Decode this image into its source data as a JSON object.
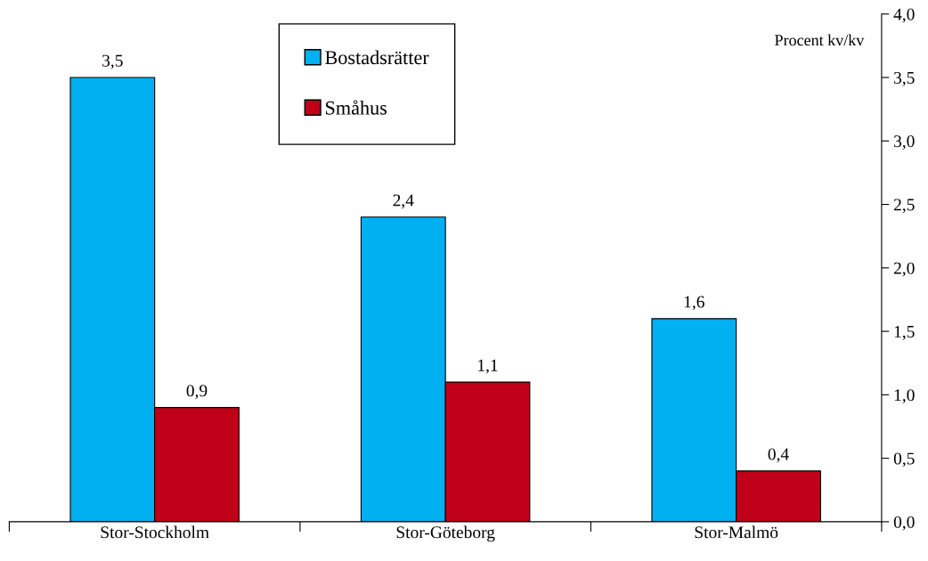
{
  "chart_data": {
    "type": "bar",
    "categories": [
      "Stor-Stockholm",
      "Stor-Göteborg",
      "Stor-Malmö"
    ],
    "series": [
      {
        "name": "Bostadsrätter",
        "color": "#00b0f0",
        "values": [
          3.5,
          2.4,
          1.6
        ],
        "value_labels": [
          "3,5",
          "2,4",
          "1,6"
        ]
      },
      {
        "name": "Småhus",
        "color": "#c00018",
        "values": [
          0.9,
          1.1,
          0.4
        ],
        "value_labels": [
          "0,9",
          "1,1",
          "0,4"
        ]
      }
    ],
    "ylim": [
      0,
      4
    ],
    "yticks": [
      {
        "value": 0,
        "label": "0,0"
      },
      {
        "value": 0.5,
        "label": "0,5"
      },
      {
        "value": 1,
        "label": "1,0"
      },
      {
        "value": 1.5,
        "label": "1,5"
      },
      {
        "value": 2,
        "label": "2,0"
      },
      {
        "value": 2.5,
        "label": "2,5"
      },
      {
        "value": 3,
        "label": "3,0"
      },
      {
        "value": 3.5,
        "label": "3,5"
      },
      {
        "value": 4,
        "label": "4,0"
      }
    ],
    "annotations": [
      "Procent kv/kv"
    ],
    "legend": "top",
    "grid": false
  }
}
